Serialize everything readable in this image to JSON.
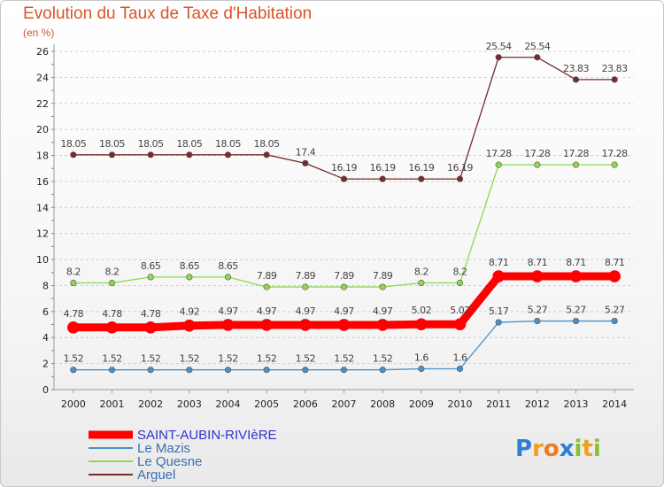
{
  "header": {
    "title": "Evolution du Taux de Taxe d'Habitation",
    "subtitle": "(en %)"
  },
  "logo": {
    "p": "P",
    "r": "r",
    "o": "o",
    "x": "x",
    "i": "i",
    "t": "t",
    "i2": "i"
  },
  "chart_data": {
    "type": "line",
    "title": "Evolution du Taux de Taxe d'Habitation",
    "ylabel": "(en %)",
    "xlabel": "",
    "x": [
      "2000",
      "2001",
      "2002",
      "2003",
      "2004",
      "2005",
      "2006",
      "2007",
      "2008",
      "2009",
      "2010",
      "2011",
      "2012",
      "2013",
      "2014"
    ],
    "ylim": [
      0,
      26
    ],
    "yticks": [
      0,
      2,
      4,
      6,
      8,
      10,
      12,
      14,
      16,
      18,
      20,
      22,
      24,
      26
    ],
    "grid": "horizontal-dashed",
    "legend_position": "bottom-left",
    "series": [
      {
        "name": "SAINT-AUBIN-RIVIèRE",
        "color": "#ff0000",
        "emphasis": true,
        "values": [
          4.78,
          4.78,
          4.78,
          4.92,
          4.97,
          4.97,
          4.97,
          4.97,
          4.97,
          5.02,
          5.02,
          8.71,
          8.71,
          8.71,
          8.71
        ],
        "labels": [
          "4.78",
          "4.78",
          "4.78",
          "4.92",
          "4.97",
          "4.97",
          "4.97",
          "4.97",
          "4.97",
          "5.02",
          "5.02",
          "8.71",
          "8.71",
          "8.71",
          "8.71"
        ]
      },
      {
        "name": "Le Mazis",
        "color": "#4a90c8",
        "emphasis": false,
        "values": [
          1.52,
          1.52,
          1.52,
          1.52,
          1.52,
          1.52,
          1.52,
          1.52,
          1.52,
          1.6,
          1.6,
          5.17,
          5.27,
          5.27,
          5.27
        ],
        "labels": [
          "1.52",
          "1.52",
          "1.52",
          "1.52",
          "1.52",
          "1.52",
          "1.52",
          "1.52",
          "1.52",
          "1.6",
          "1.6",
          "5.17",
          "5.27",
          "5.27",
          "5.27"
        ]
      },
      {
        "name": "Le Quesne",
        "color": "#8ed850",
        "emphasis": false,
        "values": [
          8.2,
          8.2,
          8.65,
          8.65,
          8.65,
          7.89,
          7.89,
          7.89,
          7.89,
          8.2,
          8.2,
          17.28,
          17.28,
          17.28,
          17.28
        ],
        "labels": [
          "8.2",
          "8.2",
          "8.65",
          "8.65",
          "8.65",
          "7.89",
          "7.89",
          "7.89",
          "7.89",
          "8.2",
          "8.2",
          "17.28",
          "17.28",
          "17.28",
          "17.28"
        ]
      },
      {
        "name": "Arguel",
        "color": "#7a2a2a",
        "emphasis": false,
        "values": [
          18.05,
          18.05,
          18.05,
          18.05,
          18.05,
          18.05,
          17.4,
          16.19,
          16.19,
          16.19,
          16.19,
          25.54,
          25.54,
          23.83,
          23.83
        ],
        "labels": [
          "18.05",
          "18.05",
          "18.05",
          "18.05",
          "18.05",
          "18.05",
          "17.4",
          "16.19",
          "16.19",
          "16.19",
          "16.19",
          "25.54",
          "25.54",
          "23.83",
          "23.83"
        ]
      }
    ]
  }
}
